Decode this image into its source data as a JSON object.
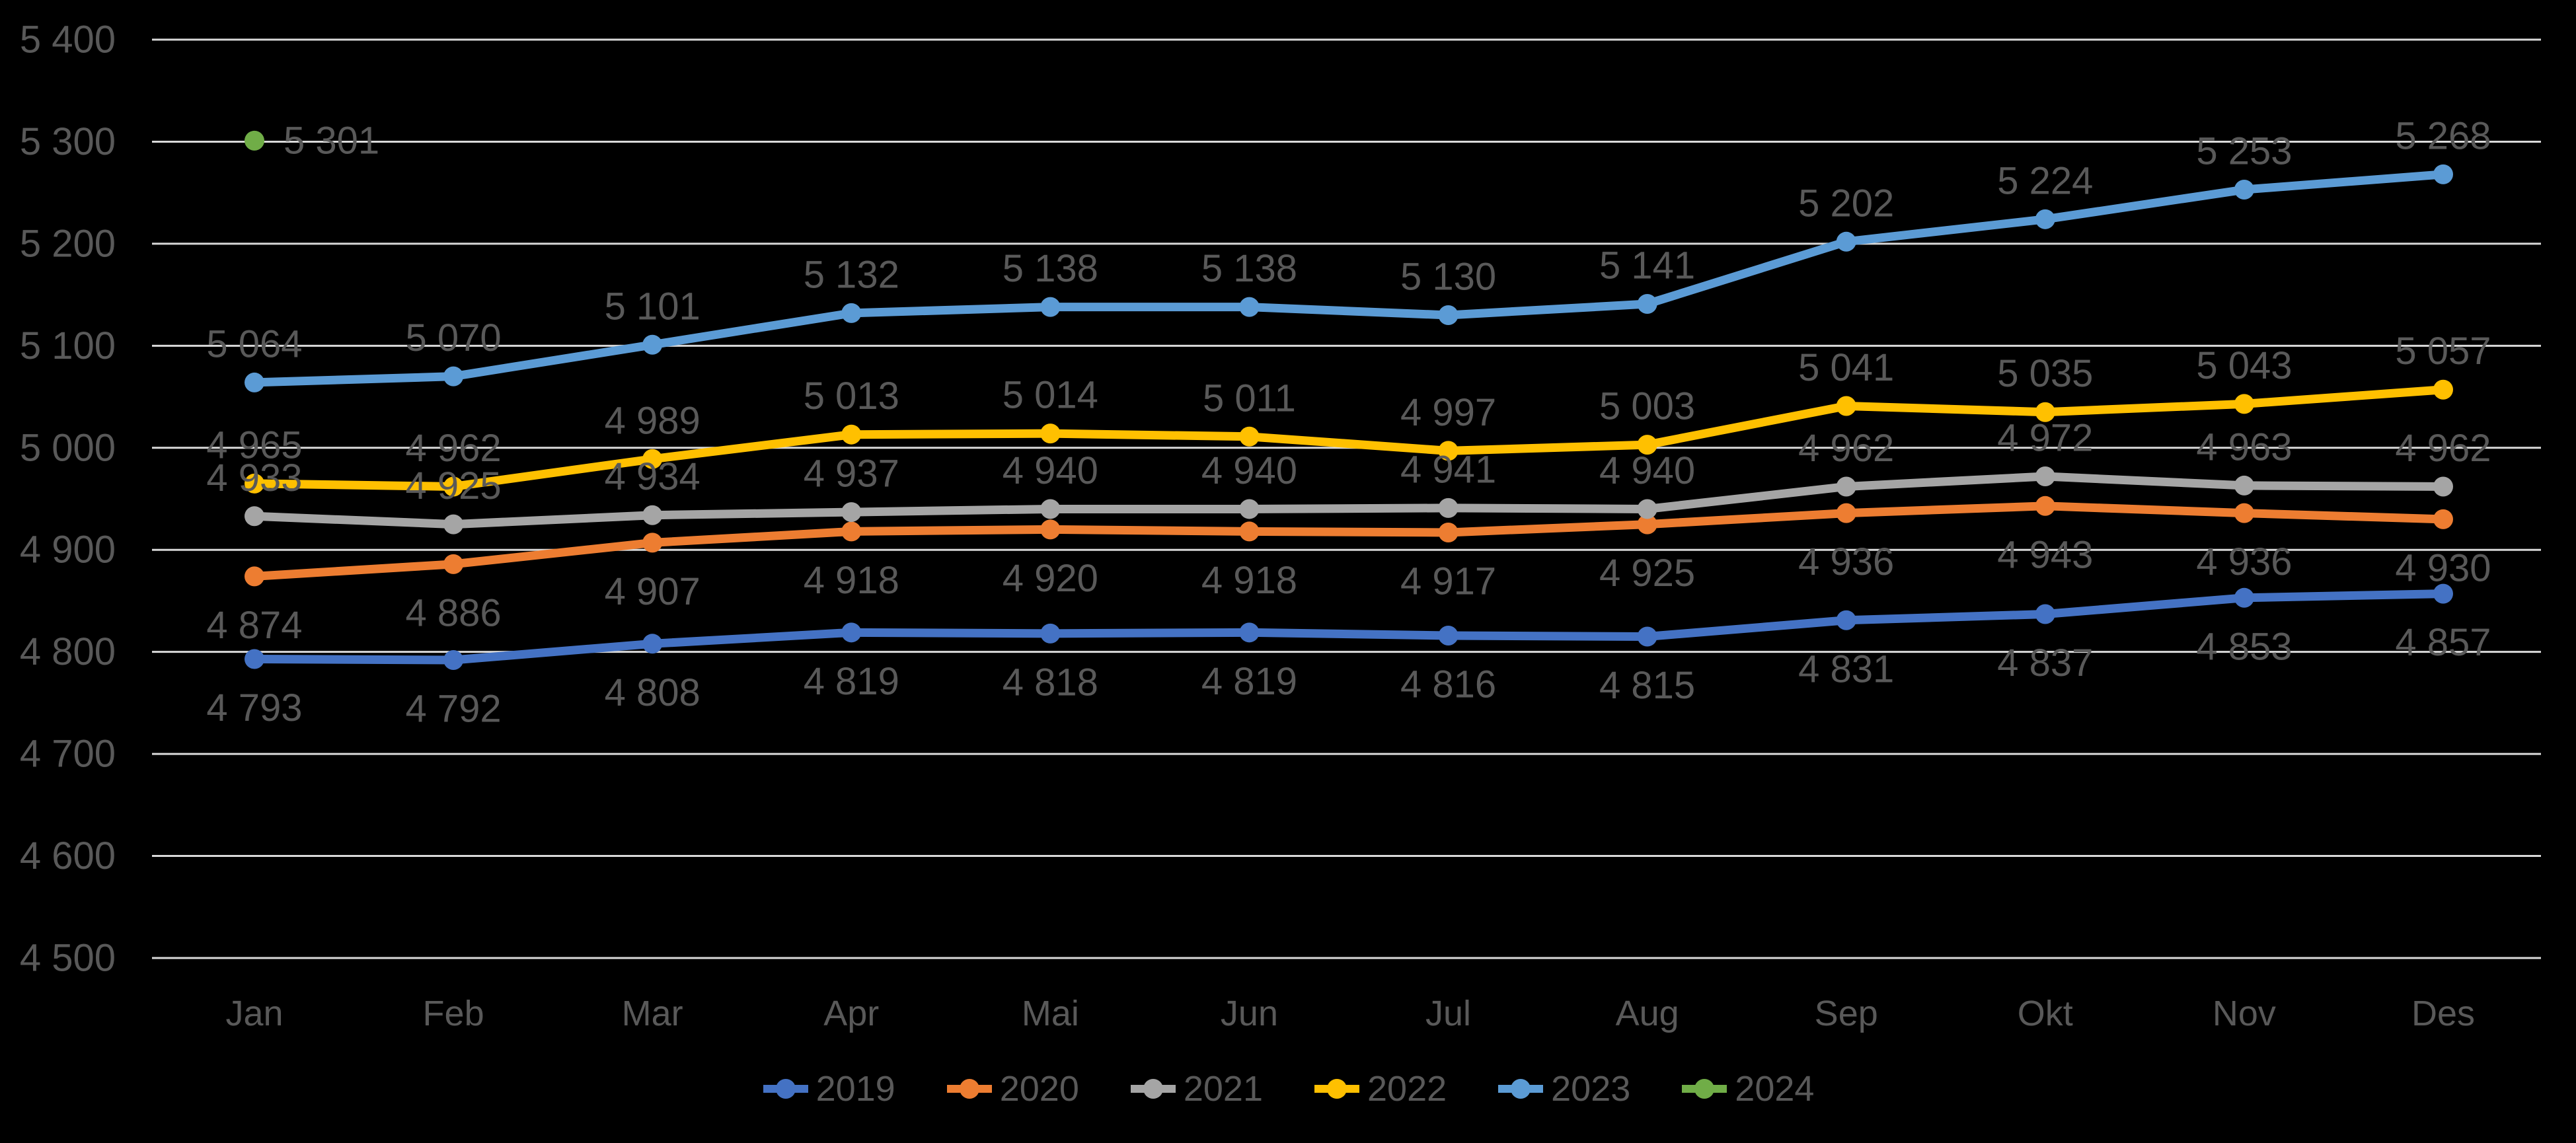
{
  "chart_data": {
    "type": "line",
    "title": "",
    "categories": [
      "Jan",
      "Feb",
      "Mar",
      "Apr",
      "Mai",
      "Jun",
      "Jul",
      "Aug",
      "Sep",
      "Okt",
      "Nov",
      "Des"
    ],
    "y_axis": {
      "min": 4500,
      "max": 5400,
      "step": 100,
      "tick_labels": [
        "5 400",
        "5 300",
        "5 200",
        "5 100",
        "5 000",
        "4 900",
        "4 800",
        "4 700",
        "4 600",
        "4 500"
      ]
    },
    "grid": true,
    "legend_position": "bottom",
    "colors": {
      "background": "#000000",
      "gridline": "#D9D9D9",
      "text": "#595959"
    },
    "series": [
      {
        "name": "2019",
        "color": "#4472C4",
        "label_position": "below",
        "values": [
          4793,
          4792,
          4808,
          4819,
          4818,
          4819,
          4816,
          4815,
          4831,
          4837,
          4853,
          4857
        ]
      },
      {
        "name": "2020",
        "color": "#ED7D31",
        "label_position": "below",
        "values": [
          4874,
          4886,
          4907,
          4918,
          4920,
          4918,
          4917,
          4925,
          4936,
          4943,
          4936,
          4930
        ]
      },
      {
        "name": "2021",
        "color": "#A5A5A5",
        "label_position": "above",
        "values": [
          4933,
          4925,
          4934,
          4937,
          4940,
          4940,
          4941,
          4940,
          4962,
          4972,
          4963,
          4962
        ]
      },
      {
        "name": "2022",
        "color": "#FFC000",
        "label_position": "above",
        "values": [
          4965,
          4962,
          4989,
          5013,
          5014,
          5011,
          4997,
          5003,
          5041,
          5035,
          5043,
          5057
        ]
      },
      {
        "name": "2023",
        "color": "#5B9BD5",
        "label_position": "above",
        "values": [
          5064,
          5070,
          5101,
          5132,
          5138,
          5138,
          5130,
          5141,
          5202,
          5224,
          5253,
          5268
        ]
      },
      {
        "name": "2024",
        "color": "#70AD47",
        "label_position": "right",
        "values": [
          5301,
          null,
          null,
          null,
          null,
          null,
          null,
          null,
          null,
          null,
          null,
          null
        ]
      }
    ]
  }
}
